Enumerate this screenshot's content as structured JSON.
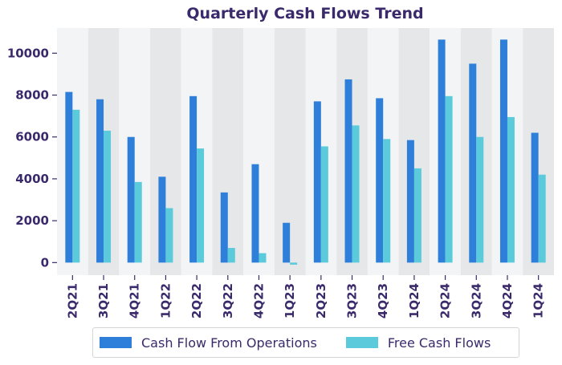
{
  "chart_data": {
    "type": "bar",
    "title": "Quarterly Cash Flows Trend",
    "xlabel": "",
    "ylabel": "",
    "categories": [
      "2Q21",
      "3Q21",
      "4Q21",
      "1Q22",
      "2Q22",
      "3Q22",
      "4Q22",
      "1Q23",
      "2Q23",
      "3Q23",
      "4Q23",
      "1Q24",
      "2Q24",
      "3Q24",
      "4Q24",
      "1Q24"
    ],
    "series": [
      {
        "name": "Cash Flow From Operations",
        "color": "#2e7fd9",
        "values": [
          8150,
          7800,
          6000,
          4100,
          7950,
          3350,
          4700,
          1900,
          7700,
          8750,
          7850,
          5850,
          10650,
          9500,
          10650,
          6200
        ]
      },
      {
        "name": "Free Cash Flows",
        "color": "#5bcadb",
        "values": [
          7300,
          6300,
          3850,
          2600,
          5450,
          700,
          450,
          -100,
          5550,
          6550,
          5900,
          4500,
          7950,
          6000,
          6950,
          4200
        ]
      }
    ],
    "ylim": [
      -600,
      11200
    ],
    "yticks": [
      0,
      2000,
      4000,
      6000,
      8000,
      10000
    ],
    "grid": false,
    "band_colors": [
      "#f3f4f5",
      "#e6e7e8"
    ],
    "legend_position": "bottom"
  }
}
